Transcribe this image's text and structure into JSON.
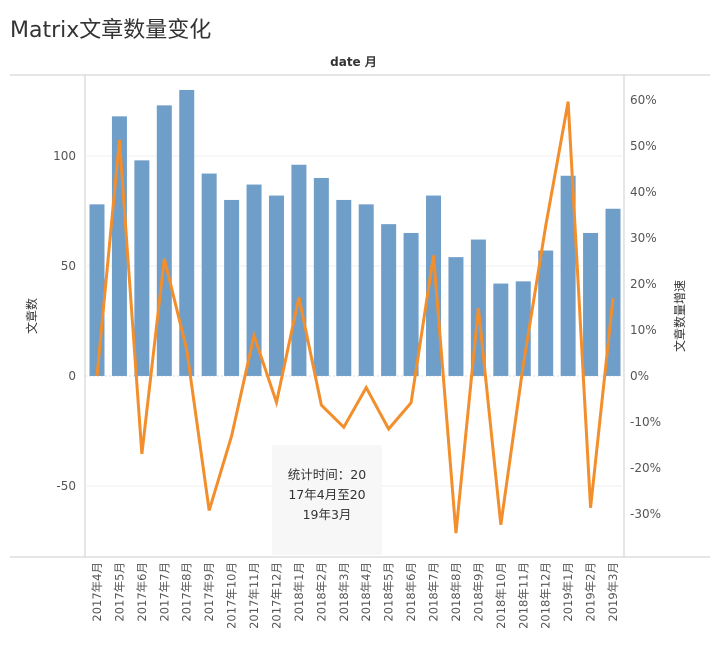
{
  "chart_data": {
    "type": "bar+line",
    "title": "Matrix文章数量变化",
    "xlabel": "date 月",
    "ylabel": "文章数",
    "y2label": "文章数量增速",
    "categories": [
      "2017年4月",
      "2017年5月",
      "2017年6月",
      "2017年7月",
      "2017年8月",
      "2017年9月",
      "2017年10月",
      "2017年11月",
      "2017年12月",
      "2018年1月",
      "2018年2月",
      "2018年3月",
      "2018年4月",
      "2018年5月",
      "2018年6月",
      "2018年7月",
      "2018年8月",
      "2018年9月",
      "2018年10月",
      "2018年11月",
      "2018年12月",
      "2019年1月",
      "2019年2月",
      "2019年3月"
    ],
    "series": [
      {
        "name": "文章数",
        "type": "bar",
        "axis": "left",
        "color": "#6f9ec9",
        "values": [
          78,
          118,
          98,
          123,
          130,
          92,
          80,
          87,
          82,
          96,
          90,
          80,
          78,
          69,
          65,
          82,
          54,
          62,
          42,
          43,
          57,
          91,
          65,
          76
        ]
      },
      {
        "name": "文章数量增速",
        "type": "line",
        "axis": "right",
        "color": "#f28e2b",
        "values": [
          0,
          51.3,
          -16.9,
          25.5,
          5.7,
          -29.2,
          -13.0,
          8.8,
          -5.7,
          17.1,
          -6.3,
          -11.1,
          -2.5,
          -11.5,
          -5.8,
          26.2,
          -34.1,
          14.8,
          -32.3,
          2.4,
          32.6,
          59.6,
          -28.6,
          16.9
        ]
      }
    ],
    "left_ticks": [
      {
        "v": 100,
        "label": "100"
      },
      {
        "v": 50,
        "label": "50"
      },
      {
        "v": 0,
        "label": "0"
      },
      {
        "v": -50,
        "label": "-50"
      }
    ],
    "right_ticks": [
      {
        "v": 60,
        "label": "60%"
      },
      {
        "v": 50,
        "label": "50%"
      },
      {
        "v": 40,
        "label": "40%"
      },
      {
        "v": 30,
        "label": "30%"
      },
      {
        "v": 20,
        "label": "20%"
      },
      {
        "v": 10,
        "label": "10%"
      },
      {
        "v": 0,
        "label": "0%"
      },
      {
        "v": -10,
        "label": "-10%"
      },
      {
        "v": -20,
        "label": "-20%"
      },
      {
        "v": -30,
        "label": "-30%"
      }
    ],
    "ylim": [
      -82.3,
      136.8
    ],
    "y2lim": [
      -39.3,
      65.4
    ],
    "grid": true,
    "annotation": [
      "统计时间：20",
      "17年4月至20",
      "19年3月"
    ]
  }
}
